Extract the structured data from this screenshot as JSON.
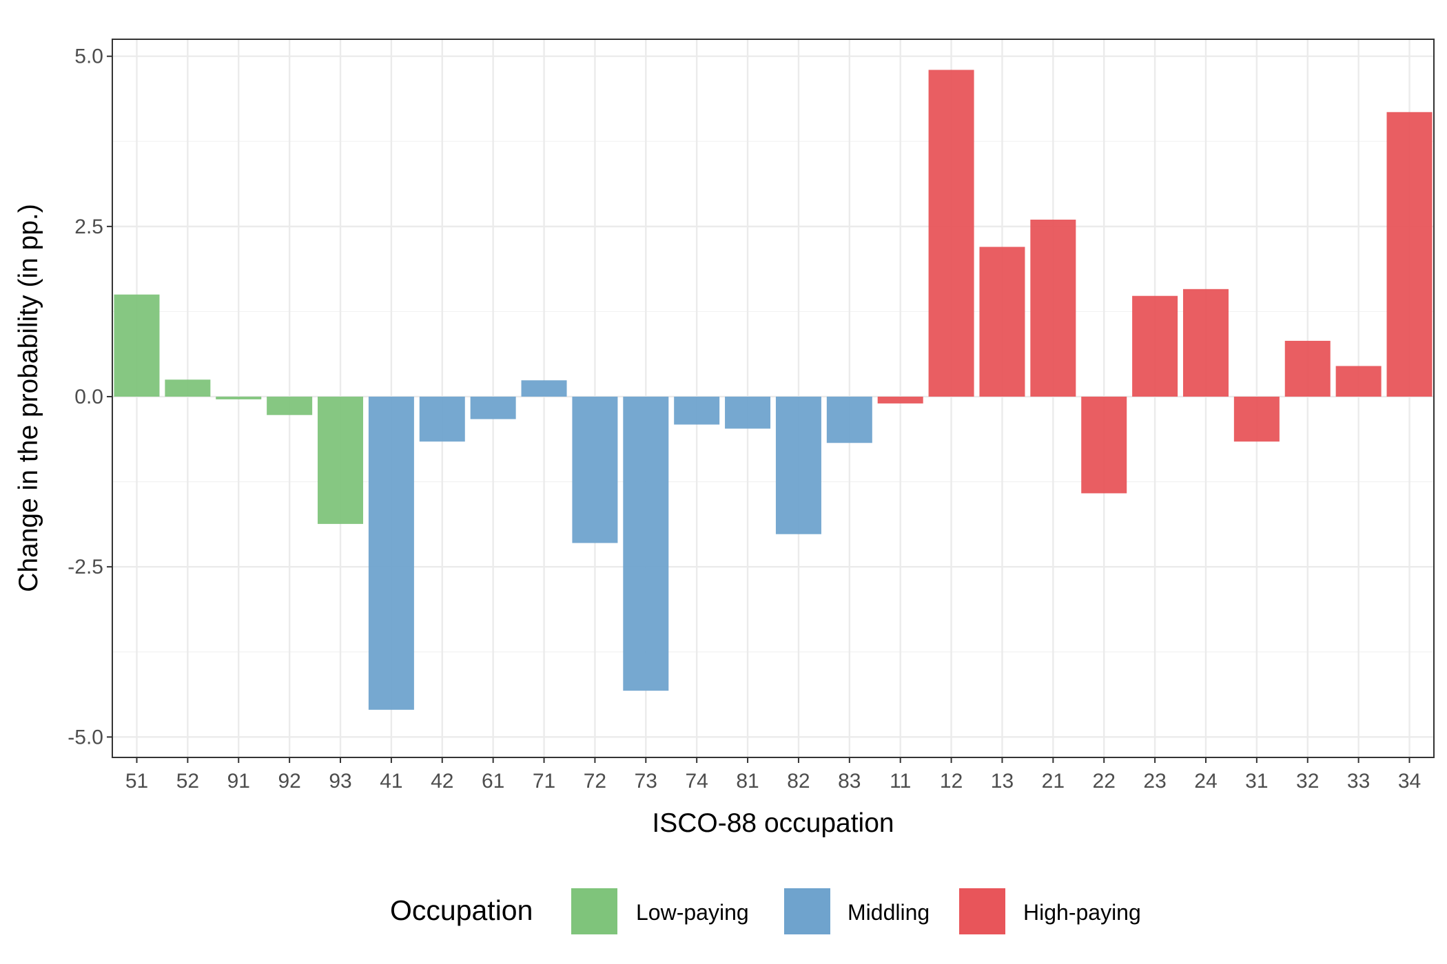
{
  "chart_data": {
    "type": "bar",
    "xlabel": "ISCO-88 occupation",
    "ylabel": "Change in the probability (in pp.)",
    "ylim": [
      -5.3,
      5.25
    ],
    "yticks": [
      -5.0,
      -2.5,
      0.0,
      2.5,
      5.0
    ],
    "ytick_labels": [
      "-5.0",
      "-2.5",
      "0.0",
      "2.5",
      "5.0"
    ],
    "grid": true,
    "legend": {
      "title": "Occupation",
      "placement": "bottom",
      "entries": [
        {
          "group": "low",
          "label": "Low-paying",
          "color": "#7FC47B"
        },
        {
          "group": "mid",
          "label": "Middling",
          "color": "#6FA3CD"
        },
        {
          "group": "high",
          "label": "High-paying",
          "color": "#E8555A"
        }
      ]
    },
    "categories": [
      "51",
      "52",
      "91",
      "92",
      "93",
      "41",
      "42",
      "61",
      "71",
      "72",
      "73",
      "74",
      "81",
      "82",
      "83",
      "11",
      "12",
      "13",
      "21",
      "22",
      "23",
      "24",
      "31",
      "32",
      "33",
      "34"
    ],
    "groups": [
      "low",
      "low",
      "low",
      "low",
      "low",
      "mid",
      "mid",
      "mid",
      "mid",
      "mid",
      "mid",
      "mid",
      "mid",
      "mid",
      "mid",
      "high",
      "high",
      "high",
      "high",
      "high",
      "high",
      "high",
      "high",
      "high",
      "high",
      "high"
    ],
    "values": [
      1.5,
      0.25,
      -0.04,
      -0.27,
      -1.87,
      -4.6,
      -0.66,
      -0.33,
      0.24,
      -2.15,
      -4.32,
      -0.41,
      -0.47,
      -2.02,
      -0.68,
      -0.1,
      4.8,
      2.2,
      2.6,
      -1.42,
      1.48,
      1.58,
      -0.66,
      0.82,
      0.45,
      4.18
    ]
  }
}
